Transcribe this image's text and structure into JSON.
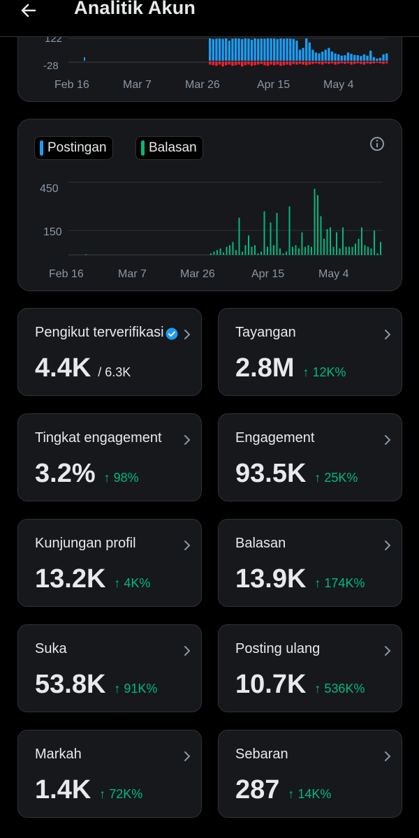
{
  "header": {
    "title": "Analitik Akun"
  },
  "chart_top": {
    "y_ticks": [
      "122",
      "-28"
    ],
    "x_ticks": [
      "Feb 16",
      "Mar 7",
      "Mar 26",
      "Apr 15",
      "May 4"
    ]
  },
  "chart_data": [
    {
      "type": "bar",
      "x_ticks": [
        "Feb 16",
        "Mar 7",
        "Mar 26",
        "Apr 15",
        "May 4"
      ],
      "y_ticks": [
        122,
        -28
      ],
      "series": [
        {
          "color": "#1d9bf0",
          "values": [
            122,
            118,
            120,
            121,
            119,
            122,
            110,
            120,
            122,
            121,
            118,
            122,
            120,
            115,
            122,
            119,
            121,
            120,
            122,
            122,
            121,
            118,
            122,
            120,
            122,
            121,
            119,
            110,
            60,
            70,
            122,
            100,
            60,
            45,
            40,
            50,
            60,
            70,
            50,
            40,
            35,
            28,
            30,
            45,
            38,
            32,
            30,
            26,
            35,
            28,
            55,
            20,
            12,
            16,
            35,
            40
          ]
        },
        {
          "color": "#f4212e",
          "values": [
            -5,
            -6,
            -7,
            -5,
            -8,
            -6,
            -5,
            -7,
            -6,
            -5,
            -8,
            -6,
            -5,
            -7,
            -6,
            -5,
            -4,
            -6,
            -7,
            -5,
            -6,
            -5,
            -7,
            -6,
            -5,
            -6,
            -4,
            -5,
            -4,
            -5,
            -6,
            -5,
            -4,
            -3,
            -4,
            -5,
            -3,
            -4,
            -3,
            -5,
            -4,
            -3,
            -4,
            -3,
            -5,
            -4,
            -3,
            -4,
            -5,
            -3,
            -4,
            -3,
            -2,
            -3,
            -4,
            -3
          ]
        }
      ]
    },
    {
      "type": "bar",
      "x_ticks": [
        "Feb 16",
        "Mar 7",
        "Mar 26",
        "Apr 15",
        "May 4"
      ],
      "y_ticks": [
        450,
        150
      ],
      "series": [
        {
          "name": "Postingan",
          "color": "#1d9bf0",
          "values": []
        },
        {
          "name": "Balasan",
          "color": "#00ba7c",
          "values": [
            10,
            20,
            30,
            40,
            15,
            50,
            60,
            80,
            30,
            230,
            20,
            60,
            120,
            50,
            60,
            10,
            20,
            270,
            50,
            200,
            60,
            260,
            40,
            10,
            20,
            300,
            50,
            60,
            40,
            140,
            50,
            60,
            50,
            410,
            370,
            240,
            100,
            160,
            170,
            50,
            140,
            40,
            170,
            50,
            50,
            50,
            70,
            100,
            170,
            60,
            50,
            40,
            150,
            10,
            80
          ]
        }
      ]
    }
  ],
  "legend": {
    "postingan": "Postingan",
    "balasan": "Balasan"
  },
  "metrics": [
    {
      "label": "Pengikut terverifikasi",
      "value": "4.4K",
      "sub": "/ 6.3K"
    },
    {
      "label": "Tayangan",
      "value": "2.8M",
      "change": "↑ 12K%"
    },
    {
      "label": "Tingkat engagement",
      "value": "3.2%",
      "change": "↑ 98%"
    },
    {
      "label": "Engagement",
      "value": "93.5K",
      "change": "↑ 25K%"
    },
    {
      "label": "Kunjungan profil",
      "value": "13.2K",
      "change": "↑ 4K%"
    },
    {
      "label": "Balasan",
      "value": "13.9K",
      "change": "↑ 174K%"
    },
    {
      "label": "Suka",
      "value": "53.8K",
      "change": "↑ 91K%"
    },
    {
      "label": "Posting ulang",
      "value": "10.7K",
      "change": "↑ 536K%"
    },
    {
      "label": "Markah",
      "value": "1.4K",
      "change": "↑ 72K%"
    },
    {
      "label": "Sebaran",
      "value": "287",
      "change": "↑ 14K%"
    }
  ],
  "colors": {
    "accent_green": "#00ba7c",
    "accent_blue": "#1d9bf0",
    "negative_red": "#f4212e",
    "card_bg": "#16181c"
  },
  "icons": {
    "back": "arrow-left-icon",
    "info": "info-icon",
    "chevron": "chevron-right-icon",
    "verified": "verified-badge-icon"
  }
}
